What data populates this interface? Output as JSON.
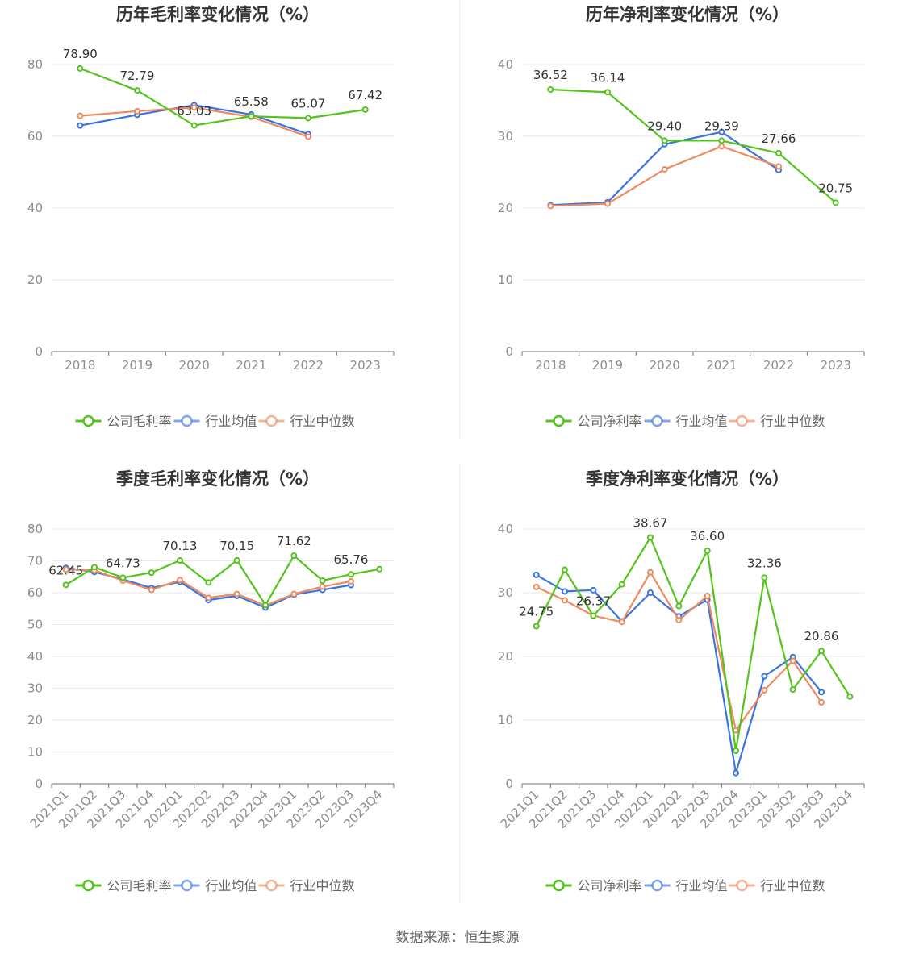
{
  "source_label": "数据来源：恒生聚源",
  "colors": {
    "company": "#52c41a",
    "industry_avg": "#3b74e0",
    "industry_median": "#f08a5d"
  },
  "chart_data": [
    {
      "type": "line",
      "title": "历年毛利率变化情况（%）",
      "x": [
        "2018",
        "2019",
        "2020",
        "2021",
        "2022",
        "2023"
      ],
      "ylim": [
        0,
        80
      ],
      "yticks": [
        0,
        20,
        40,
        60,
        80
      ],
      "grid": true,
      "legend": "bottom",
      "series": [
        {
          "name": "公司毛利率",
          "key": "company",
          "values": [
            78.9,
            72.79,
            63.03,
            65.58,
            65.07,
            67.42
          ],
          "labels": [
            "78.90",
            "72.79",
            "63.03",
            "65.58",
            "65.07",
            "67.42"
          ]
        },
        {
          "name": "行业均值",
          "key": "industry_avg",
          "values": [
            63.0,
            66.0,
            68.7,
            66.1,
            60.6,
            null
          ]
        },
        {
          "name": "行业中位数",
          "key": "industry_median",
          "values": [
            65.7,
            67.0,
            68.0,
            65.4,
            59.9,
            null
          ]
        }
      ]
    },
    {
      "type": "line",
      "title": "历年净利率变化情况（%）",
      "x": [
        "2018",
        "2019",
        "2020",
        "2021",
        "2022",
        "2023"
      ],
      "ylim": [
        0,
        40
      ],
      "yticks": [
        0,
        10,
        20,
        30,
        40
      ],
      "grid": true,
      "legend": "bottom",
      "series": [
        {
          "name": "公司净利率",
          "key": "company",
          "values": [
            36.52,
            36.14,
            29.4,
            29.39,
            27.66,
            20.75
          ],
          "labels": [
            "36.52",
            "36.14",
            "29.40",
            "29.39",
            "27.66",
            "20.75"
          ]
        },
        {
          "name": "行业均值",
          "key": "industry_avg",
          "values": [
            20.4,
            20.8,
            28.9,
            30.6,
            25.3,
            null
          ]
        },
        {
          "name": "行业中位数",
          "key": "industry_median",
          "values": [
            20.3,
            20.6,
            25.4,
            28.6,
            25.8,
            null
          ]
        }
      ]
    },
    {
      "type": "line",
      "title": "季度毛利率变化情况（%）",
      "x": [
        "2021Q1",
        "2021Q2",
        "2021Q3",
        "2021Q4",
        "2022Q1",
        "2022Q2",
        "2022Q3",
        "2022Q4",
        "2023Q1",
        "2023Q2",
        "2023Q3",
        "2023Q4"
      ],
      "ylim": [
        0,
        80
      ],
      "yticks": [
        0,
        10,
        20,
        30,
        40,
        50,
        60,
        70,
        80
      ],
      "grid": true,
      "legend": "bottom",
      "series": [
        {
          "name": "公司毛利率",
          "key": "company",
          "values": [
            62.45,
            68.0,
            64.73,
            66.3,
            70.13,
            63.2,
            70.15,
            56.1,
            71.62,
            63.8,
            65.76,
            67.4
          ],
          "labels": [
            "62.45",
            null,
            "64.73",
            null,
            "70.13",
            null,
            "70.15",
            null,
            "71.62",
            null,
            "65.76",
            null
          ]
        },
        {
          "name": "行业均值",
          "key": "industry_avg",
          "values": [
            67.8,
            66.5,
            64.2,
            61.5,
            63.4,
            57.7,
            59.0,
            55.3,
            59.4,
            60.9,
            62.4,
            null
          ]
        },
        {
          "name": "行业中位数",
          "key": "industry_median",
          "values": [
            67.3,
            67.0,
            63.8,
            60.9,
            64.0,
            58.4,
            59.6,
            56.0,
            59.6,
            61.9,
            63.6,
            null
          ]
        }
      ]
    },
    {
      "type": "line",
      "title": "季度净利率变化情况（%）",
      "x": [
        "2021Q1",
        "2021Q2",
        "2021Q3",
        "2021Q4",
        "2022Q1",
        "2022Q2",
        "2022Q3",
        "2022Q4",
        "2023Q1",
        "2023Q2",
        "2023Q3",
        "2023Q4"
      ],
      "ylim": [
        0,
        40
      ],
      "yticks": [
        0,
        10,
        20,
        30,
        40
      ],
      "grid": true,
      "legend": "bottom",
      "series": [
        {
          "name": "公司净利率",
          "key": "company",
          "values": [
            24.75,
            33.6,
            26.37,
            31.3,
            38.67,
            27.9,
            36.6,
            5.2,
            32.36,
            14.8,
            20.86,
            13.7
          ],
          "labels": [
            "24.75",
            null,
            "26.37",
            null,
            "38.67",
            null,
            "36.60",
            null,
            "32.36",
            null,
            "20.86",
            null
          ]
        },
        {
          "name": "行业均值",
          "key": "industry_avg",
          "values": [
            32.8,
            30.2,
            30.4,
            25.5,
            30.0,
            26.3,
            28.9,
            1.7,
            16.9,
            19.9,
            14.4,
            null
          ]
        },
        {
          "name": "行业中位数",
          "key": "industry_median",
          "values": [
            30.9,
            28.8,
            26.4,
            25.4,
            33.2,
            25.7,
            29.5,
            8.4,
            14.7,
            19.3,
            12.8,
            null
          ]
        }
      ]
    }
  ]
}
